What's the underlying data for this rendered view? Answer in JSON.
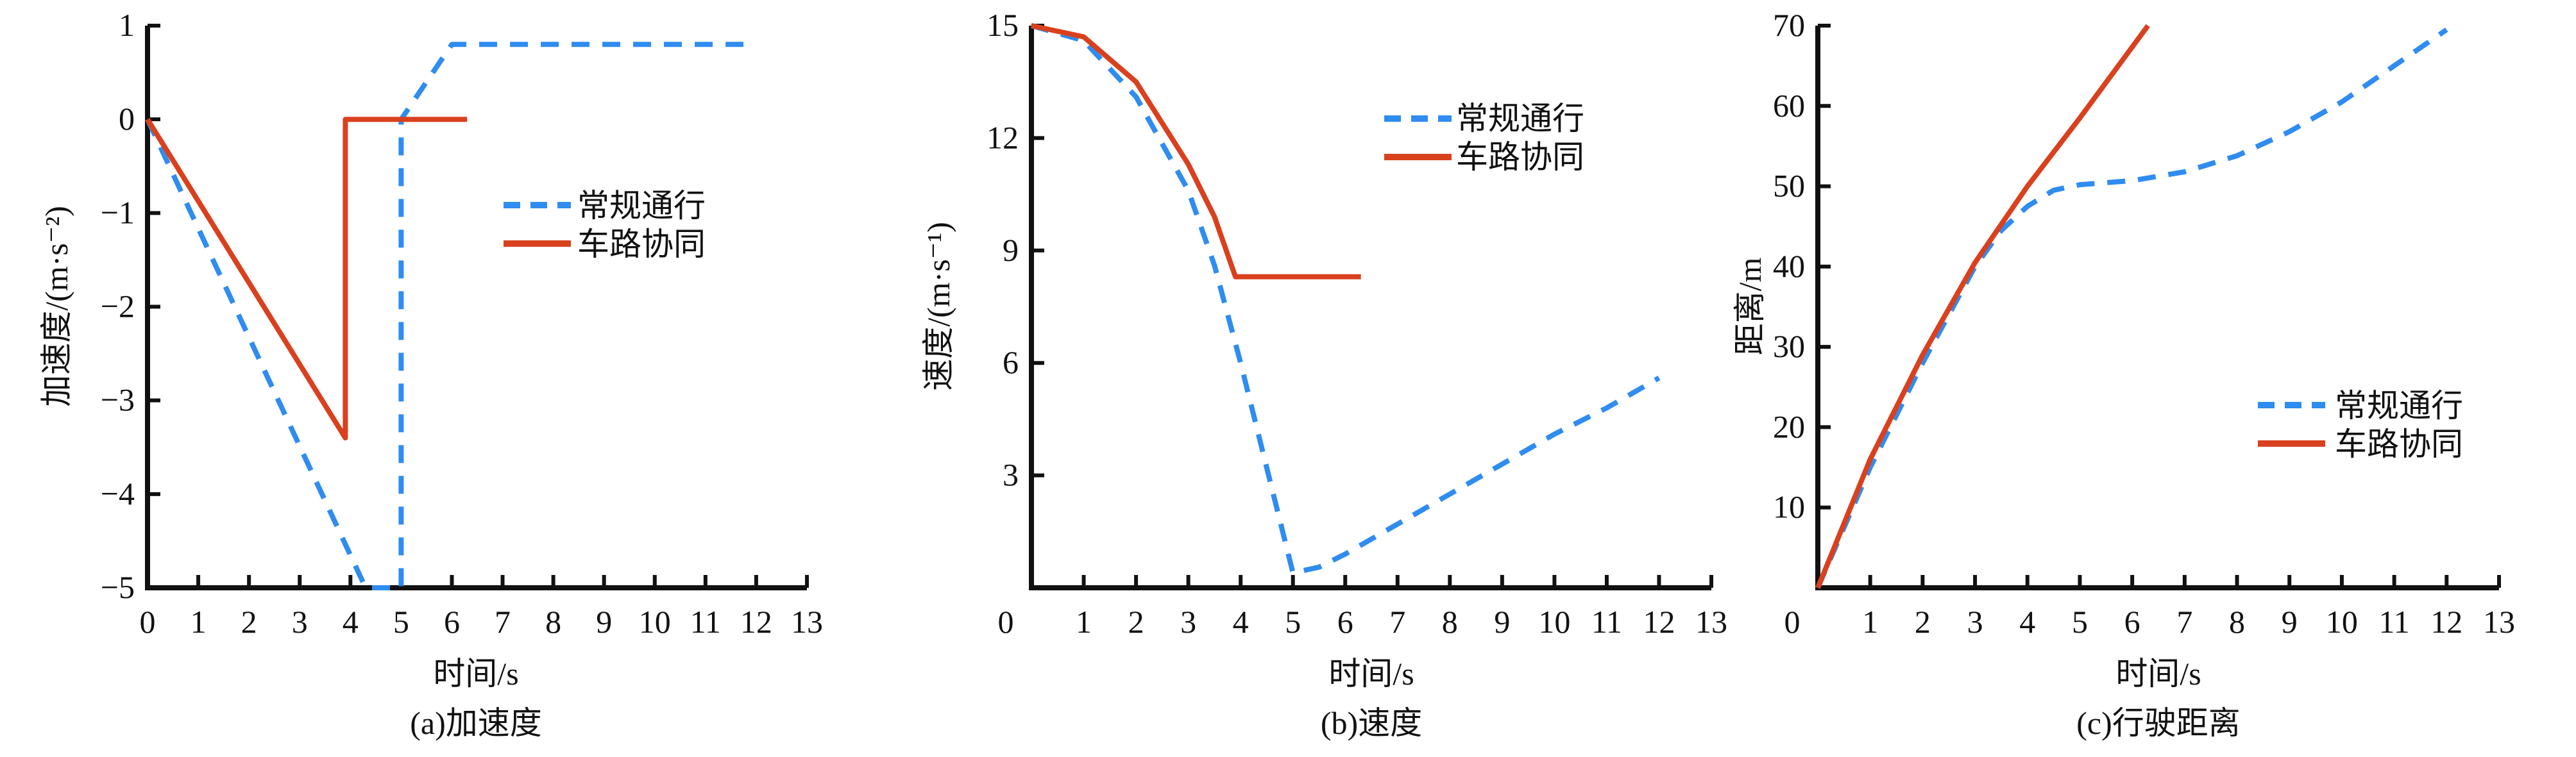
{
  "colors": {
    "conventional": "#2f8cf0",
    "cooperative": "#d9411e",
    "axis": "#111111"
  },
  "legend": [
    "常规通行",
    "车路协同"
  ],
  "chart_data": [
    {
      "type": "line",
      "caption": "(a)加速度",
      "xlabel": "时间/s",
      "ylabel": "加速度/(m·s⁻²)",
      "xlim": [
        0,
        13
      ],
      "ylim": [
        -5,
        1
      ],
      "xticks": [
        0,
        1,
        2,
        3,
        4,
        5,
        6,
        7,
        8,
        9,
        10,
        11,
        12,
        13
      ],
      "yticks": [
        -5,
        -4,
        -3,
        -2,
        -1,
        0,
        1
      ],
      "legend_position": "center-right",
      "series": [
        {
          "name": "常规通行",
          "style": "dashed",
          "x": [
            0,
            4.3,
            5,
            5,
            6,
            12
          ],
          "y": [
            0,
            -5,
            -5,
            0,
            0.8,
            0.8
          ]
        },
        {
          "name": "车路协同",
          "style": "solid",
          "x": [
            0,
            3.9,
            3.9,
            6.3
          ],
          "y": [
            0,
            -3.4,
            0,
            0
          ]
        }
      ]
    },
    {
      "type": "line",
      "caption": "(b)速度",
      "xlabel": "时间/s",
      "ylabel": "速度/(m·s⁻¹)",
      "xlim": [
        0,
        13
      ],
      "ylim": [
        0,
        15
      ],
      "xticks": [
        0,
        1,
        2,
        3,
        4,
        5,
        6,
        7,
        8,
        9,
        10,
        11,
        12,
        13
      ],
      "yticks": [
        3,
        6,
        9,
        12,
        15
      ],
      "legend_position": "top-right",
      "series": [
        {
          "name": "常规通行",
          "style": "dashed",
          "x": [
            0,
            1,
            2,
            3,
            3.5,
            4,
            4.5,
            5,
            5.5,
            6,
            7,
            8,
            9,
            10,
            11,
            12
          ],
          "y": [
            15,
            14.6,
            13.1,
            10.6,
            8.6,
            6.0,
            3.2,
            0.4,
            0.55,
            0.9,
            1.7,
            2.5,
            3.3,
            4.1,
            4.8,
            5.6
          ]
        },
        {
          "name": "车路协同",
          "style": "solid",
          "x": [
            0,
            1,
            2,
            3,
            3.5,
            3.9,
            6.3
          ],
          "y": [
            15,
            14.7,
            13.5,
            11.3,
            9.9,
            8.3,
            8.3
          ]
        }
      ]
    },
    {
      "type": "line",
      "caption": "(c)行驶距离",
      "xlabel": "时间/s",
      "ylabel": "距离/m",
      "xlim": [
        0,
        13
      ],
      "ylim": [
        0,
        70
      ],
      "xticks": [
        0,
        1,
        2,
        3,
        4,
        5,
        6,
        7,
        8,
        9,
        10,
        11,
        12,
        13
      ],
      "yticks": [
        10,
        20,
        30,
        40,
        50,
        60,
        70
      ],
      "legend_position": "center-right",
      "series": [
        {
          "name": "常规通行",
          "style": "dashed",
          "x": [
            0,
            1,
            2,
            3,
            3.5,
            4,
            4.5,
            5,
            6,
            7,
            8,
            9,
            10,
            11,
            12
          ],
          "y": [
            0,
            15,
            28,
            40,
            44.5,
            47.5,
            49.5,
            50.2,
            50.7,
            51.8,
            53.8,
            56.8,
            60.5,
            65,
            69.5
          ]
        },
        {
          "name": "车路协同",
          "style": "solid",
          "x": [
            0,
            1,
            2,
            3,
            4,
            5,
            6.3
          ],
          "y": [
            0,
            16,
            29,
            40.5,
            50,
            58.5,
            70
          ]
        }
      ]
    }
  ]
}
